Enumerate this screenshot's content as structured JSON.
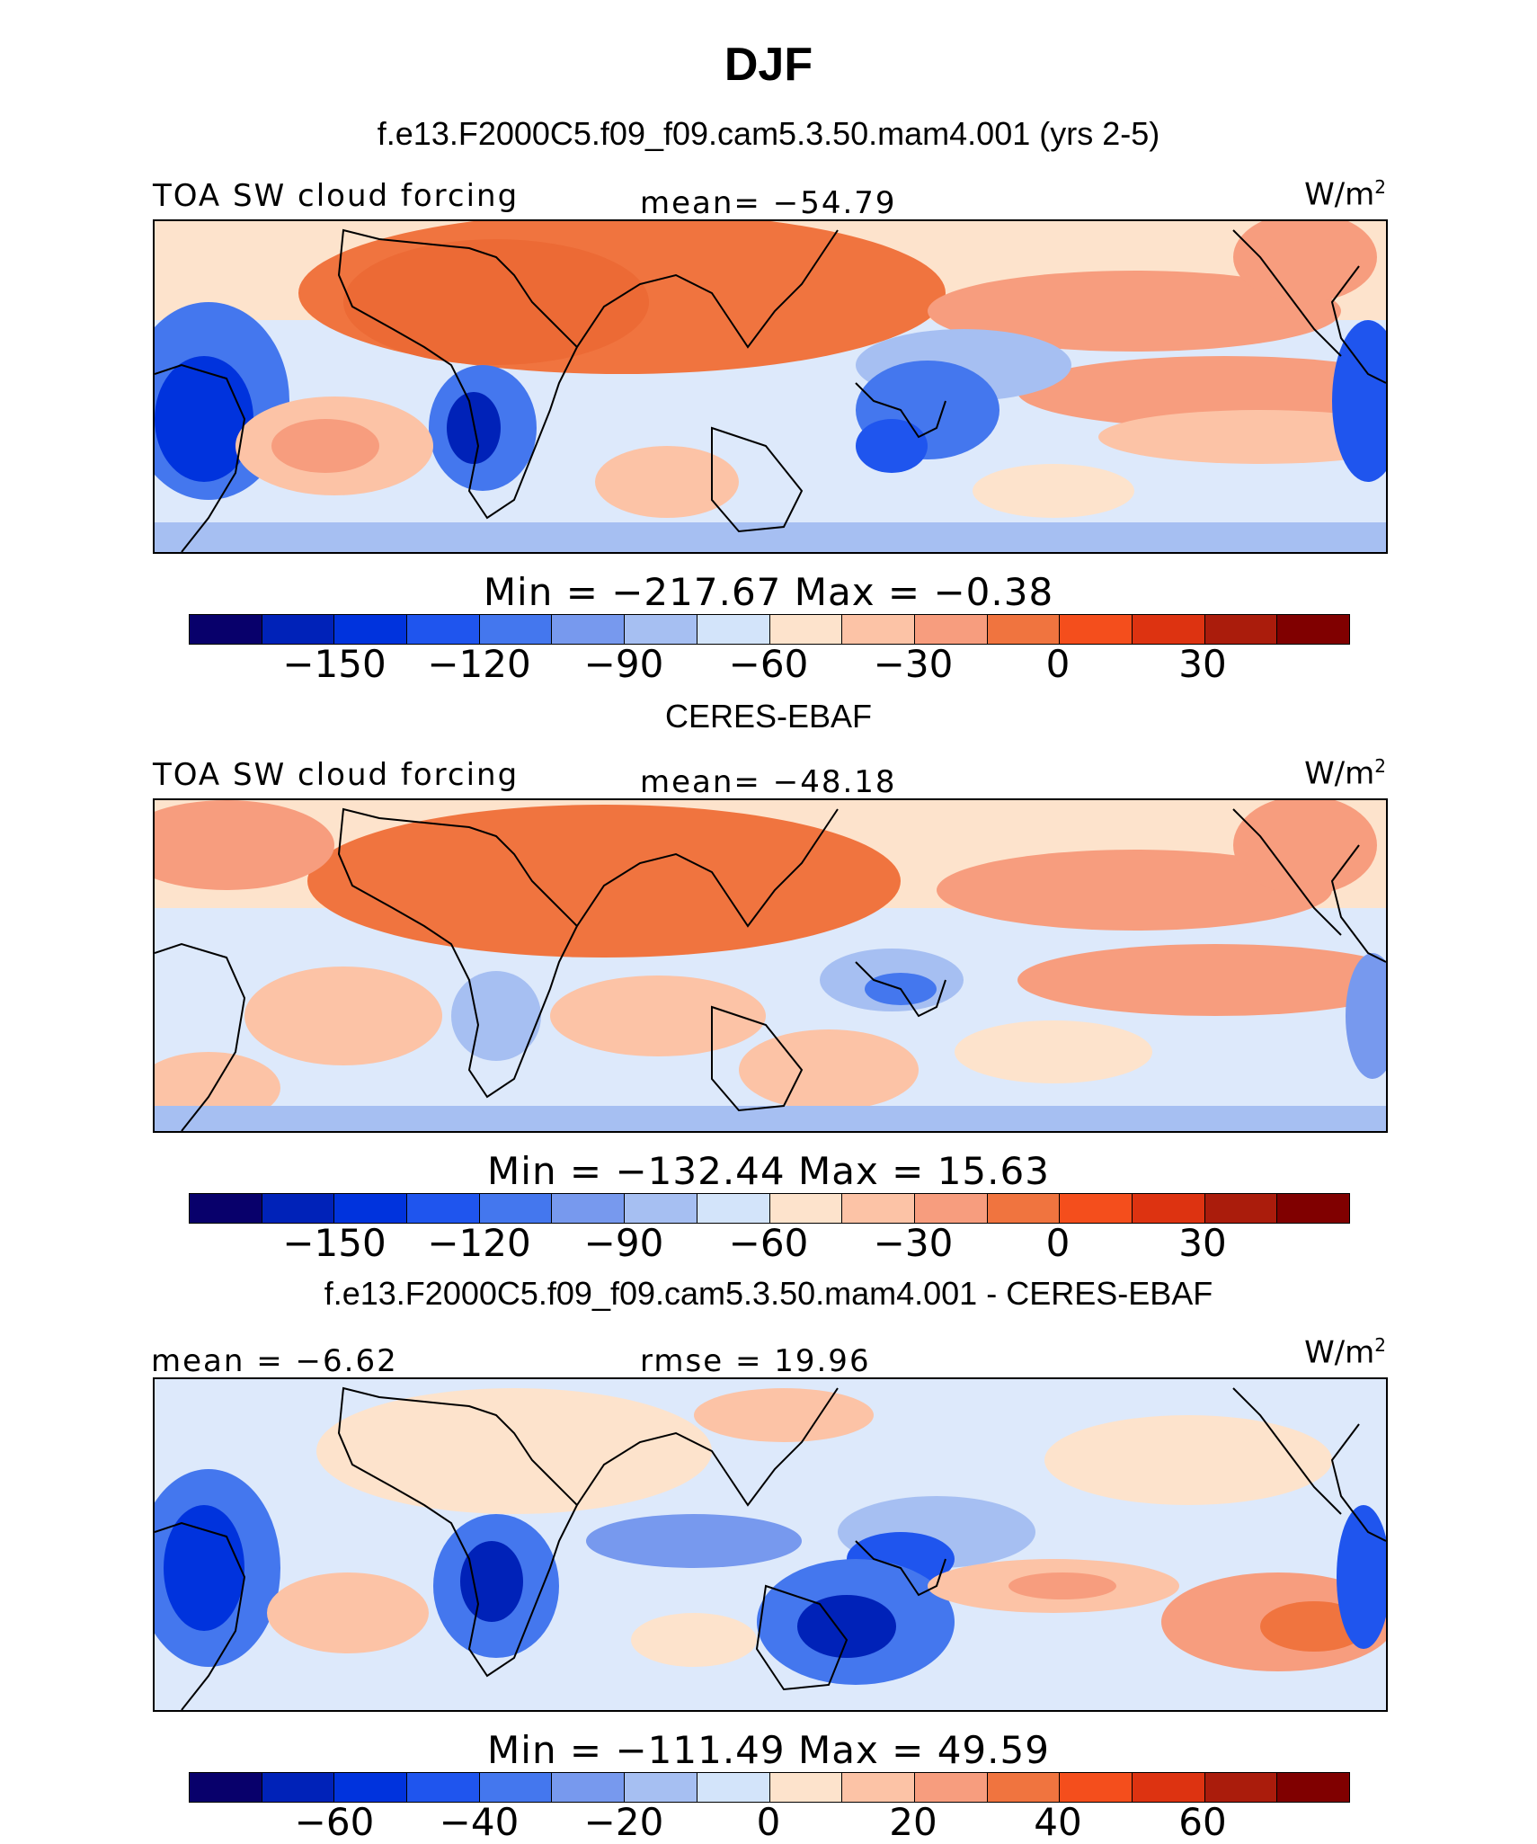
{
  "title": "DJF",
  "palette": [
    "#08006b",
    "#0022b8",
    "#0033dd",
    "#1f55ee",
    "#4477ee",
    "#7799ee",
    "#a6bff2",
    "#d3e4fa",
    "#fde3cc",
    "#fcc3a6",
    "#f79d7e",
    "#f0743f",
    "#f44e1c",
    "#dd3311",
    "#aa1c0c",
    "#800000"
  ],
  "land_color": "#e8701f",
  "panels": [
    {
      "subtitle": "f.e13.F2000C5.f09_f09.cam5.3.50.mam4.001 (yrs 2-5)",
      "left_label": "TOA SW cloud forcing",
      "center_label": "mean= −54.79",
      "unit_base": "W/m",
      "unit_exp": "2",
      "minmax": "Min  =  −217.67  Max  =   −0.38",
      "ticks": [
        "−150",
        "−120",
        "−90",
        "−60",
        "−30",
        "0",
        "30"
      ]
    },
    {
      "subtitle": "CERES-EBAF",
      "left_label": "TOA SW cloud forcing",
      "center_label": "mean= −48.18",
      "unit_base": "W/m",
      "unit_exp": "2",
      "minmax": "Min  =  −132.44  Max  =   15.63",
      "ticks": [
        "−150",
        "−120",
        "−90",
        "−60",
        "−30",
        "0",
        "30"
      ]
    },
    {
      "subtitle": "f.e13.F2000C5.f09_f09.cam5.3.50.mam4.001 - CERES-EBAF",
      "left_label": "mean =   −6.62",
      "center_label": "rmse =   19.96",
      "unit_base": "W/m",
      "unit_exp": "2",
      "minmax": "Min  =  −111.49  Max  =   49.59",
      "ticks": [
        "−60",
        "−40",
        "−20",
        "0",
        "20",
        "40",
        "60"
      ]
    }
  ]
}
